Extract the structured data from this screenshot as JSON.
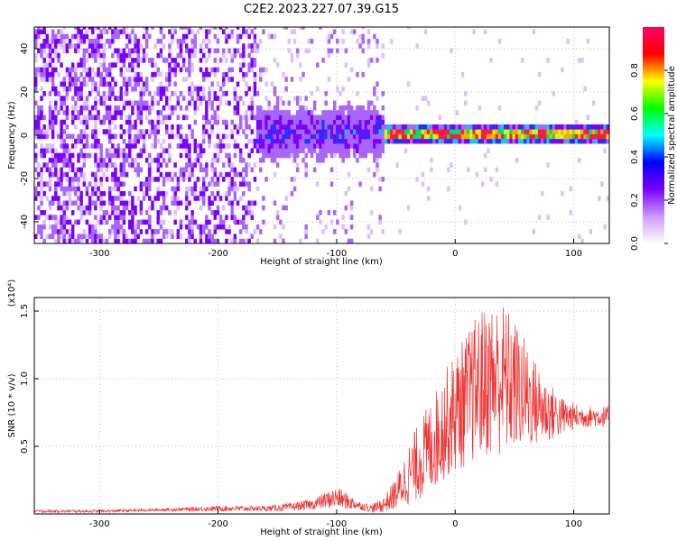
{
  "figure_title": "C2E2.2023.227.07.39.G15",
  "chart_data": [
    {
      "type": "heatmap",
      "xlabel": "Height of straight line (km)",
      "ylabel": "Frequency (Hz)",
      "xlim": [
        -355,
        130
      ],
      "ylim": [
        -50,
        50
      ],
      "x_ticks": [
        -300,
        -200,
        -100,
        0,
        100
      ],
      "y_ticks": [
        -40,
        -20,
        0,
        20,
        40
      ],
      "grid": true,
      "colorbar": {
        "label": "Normalized spectral amplitude",
        "range": [
          0,
          1
        ],
        "ticks": [
          "0.0",
          "0.2",
          "0.4",
          "0.6",
          "0.8"
        ],
        "colormap": [
          "#ffffff",
          "#cc99ff",
          "#7b00ff",
          "#0000ff",
          "#00ffff",
          "#00ff00",
          "#ffff00",
          "#ff0000",
          "#ff0066"
        ]
      },
      "description_regions": [
        {
          "x_range": [
            -355,
            -170
          ],
          "freq_spread": [
            -50,
            50
          ],
          "amplitude": 0.15
        },
        {
          "x_range": [
            -170,
            -60
          ],
          "freq_spread": [
            -12,
            12
          ],
          "amplitude": 0.3
        },
        {
          "x_range": [
            -60,
            130
          ],
          "freq_spread": [
            -3,
            3
          ],
          "amplitude": 0.9
        }
      ]
    },
    {
      "type": "line",
      "xlabel": "Height of straight line (km)",
      "ylabel": "SNR (10 * v/v)",
      "y_multiplier": "(x10⁴)",
      "xlim": [
        -355,
        130
      ],
      "ylim": [
        0.0,
        1.6
      ],
      "x_ticks": [
        -300,
        -200,
        -100,
        0,
        100
      ],
      "y_ticks": [
        "0.5",
        "1.0",
        "1.5"
      ],
      "y_tick_values": [
        0.5,
        1.0,
        1.5
      ],
      "grid": true,
      "color": "#ee3333",
      "series": [
        {
          "x": [
            -355,
            -300,
            -250,
            -200,
            -180,
            -160,
            -140,
            -120,
            -110,
            -100,
            -90,
            -80,
            -70,
            -60,
            -50,
            -40,
            -30,
            -20,
            -10,
            0,
            10,
            20,
            30,
            40,
            50,
            60,
            70,
            80,
            90,
            100,
            110,
            120,
            130
          ],
          "values": [
            0.02,
            0.02,
            0.03,
            0.04,
            0.04,
            0.04,
            0.05,
            0.07,
            0.1,
            0.12,
            0.09,
            0.06,
            0.04,
            0.07,
            0.15,
            0.28,
            0.4,
            0.5,
            0.65,
            0.75,
            0.85,
            0.95,
            1.0,
            1.0,
            0.95,
            0.88,
            0.8,
            0.75,
            0.72,
            0.72,
            0.72,
            0.72,
            0.72
          ],
          "amplitude": [
            0.01,
            0.01,
            0.01,
            0.02,
            0.02,
            0.02,
            0.03,
            0.04,
            0.06,
            0.08,
            0.06,
            0.03,
            0.03,
            0.06,
            0.12,
            0.22,
            0.3,
            0.35,
            0.4,
            0.45,
            0.5,
            0.55,
            0.58,
            0.58,
            0.5,
            0.4,
            0.3,
            0.22,
            0.15,
            0.1,
            0.08,
            0.08,
            0.08
          ]
        }
      ]
    }
  ]
}
